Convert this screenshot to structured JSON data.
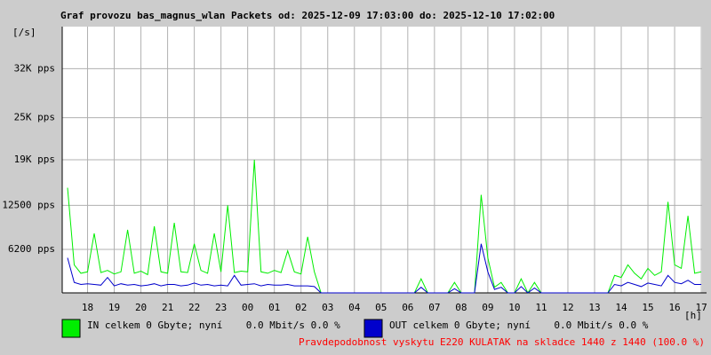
{
  "chart_data": {
    "type": "line",
    "title": "Graf provozu bas_magnus_wlan Packets od: 2025-12-09 17:03:00 do: 2025-12-10 17:02:00",
    "y_label": "[/s]",
    "x_label": "[h]",
    "footer": "Pravdepodobnost vyskytu E220 KULATAK na skladce 1440 z 1440 (100.0 %)",
    "xlim": [
      17.05,
      41.03
    ],
    "xticks": [
      18,
      19,
      20,
      21,
      22,
      23,
      {
        "value": 24,
        "label": "00"
      },
      {
        "value": 25,
        "label": "01"
      },
      {
        "value": 26,
        "label": "02"
      },
      {
        "value": 27,
        "label": "03"
      },
      {
        "value": 28,
        "label": "04"
      },
      {
        "value": 29,
        "label": "05"
      },
      {
        "value": 30,
        "label": "06"
      },
      {
        "value": 31,
        "label": "07"
      },
      {
        "value": 32,
        "label": "08"
      },
      {
        "value": 33,
        "label": "09"
      },
      {
        "value": 34,
        "label": "10"
      },
      {
        "value": 35,
        "label": "11"
      },
      {
        "value": 36,
        "label": "12"
      },
      {
        "value": 37,
        "label": "13"
      },
      {
        "value": 38,
        "label": "14"
      },
      {
        "value": 39,
        "label": "15"
      },
      {
        "value": 40,
        "label": "16"
      },
      {
        "value": 41,
        "label": "17"
      }
    ],
    "ylim": [
      0,
      38000
    ],
    "yticks": [
      {
        "value": 6200,
        "label": "6200 pps"
      },
      {
        "value": 12500,
        "label": "12500 pps"
      },
      {
        "value": 19000,
        "label": "19K pps"
      },
      {
        "value": 25000,
        "label": "25K pps"
      },
      {
        "value": 32000,
        "label": "32K pps"
      }
    ],
    "grid": true,
    "x": [
      17.25,
      17.5,
      17.75,
      18,
      18.25,
      18.5,
      18.75,
      19,
      19.25,
      19.5,
      19.75,
      20,
      20.25,
      20.5,
      20.75,
      21,
      21.25,
      21.5,
      21.75,
      22,
      22.25,
      22.5,
      22.75,
      23,
      23.25,
      23.5,
      23.75,
      24,
      24.25,
      24.5,
      24.75,
      25,
      25.25,
      25.5,
      25.75,
      26,
      26.25,
      26.5,
      26.75,
      27,
      27.25,
      27.5,
      27.75,
      28,
      28.25,
      28.5,
      28.75,
      29,
      29.25,
      29.5,
      29.75,
      30,
      30.25,
      30.5,
      30.75,
      31,
      31.25,
      31.5,
      31.75,
      32,
      32.25,
      32.5,
      32.75,
      33,
      33.25,
      33.5,
      33.75,
      34,
      34.25,
      34.5,
      34.75,
      35,
      35.25,
      35.5,
      35.75,
      36,
      36.25,
      36.5,
      36.75,
      37,
      37.25,
      37.5,
      37.75,
      38,
      38.25,
      38.5,
      38.75,
      39,
      39.25,
      39.5,
      39.75,
      40,
      40.25,
      40.5,
      40.75,
      41
    ],
    "series": [
      {
        "name": "IN celkem 0 Gbyte; nyní    0.0 Mbit/s 0.0 %",
        "color": "#00ee00",
        "values": [
          15000,
          4000,
          2800,
          3000,
          8500,
          2900,
          3200,
          2700,
          3000,
          9000,
          2800,
          3100,
          2600,
          9500,
          3000,
          2800,
          10000,
          3000,
          2900,
          7000,
          3200,
          2800,
          8500,
          3000,
          12500,
          2900,
          3100,
          3000,
          19000,
          3000,
          2800,
          3200,
          2900,
          6000,
          3000,
          2700,
          8000,
          3000,
          0,
          0,
          0,
          0,
          0,
          0,
          0,
          0,
          0,
          0,
          0,
          0,
          0,
          0,
          0,
          2000,
          0,
          0,
          0,
          0,
          1500,
          0,
          0,
          0,
          14000,
          5000,
          800,
          1500,
          0,
          0,
          2000,
          0,
          1500,
          0,
          0,
          0,
          0,
          0,
          0,
          0,
          0,
          0,
          0,
          0,
          2500,
          2200,
          4000,
          2800,
          2000,
          3500,
          2500,
          3000,
          13000,
          4000,
          3500,
          11000,
          2800,
          3000
        ]
      },
      {
        "name": "OUT celkem 0 Gbyte; nyní    0.0 Mbit/s 0.0 %",
        "color": "#0000cc",
        "values": [
          5000,
          1500,
          1200,
          1300,
          1200,
          1100,
          2200,
          1000,
          1300,
          1100,
          1200,
          1000,
          1100,
          1300,
          1000,
          1200,
          1200,
          1000,
          1100,
          1400,
          1100,
          1200,
          1000,
          1100,
          1000,
          2500,
          1100,
          1200,
          1300,
          1000,
          1200,
          1100,
          1100,
          1200,
          1000,
          1000,
          1000,
          900,
          0,
          0,
          0,
          0,
          0,
          0,
          0,
          0,
          0,
          0,
          0,
          0,
          0,
          0,
          0,
          800,
          0,
          0,
          0,
          0,
          600,
          0,
          0,
          0,
          7000,
          3000,
          500,
          800,
          0,
          0,
          900,
          0,
          700,
          0,
          0,
          0,
          0,
          0,
          0,
          0,
          0,
          0,
          0,
          0,
          1200,
          1000,
          1500,
          1200,
          900,
          1400,
          1200,
          1000,
          2500,
          1500,
          1300,
          1800,
          1200,
          1200
        ]
      }
    ]
  }
}
